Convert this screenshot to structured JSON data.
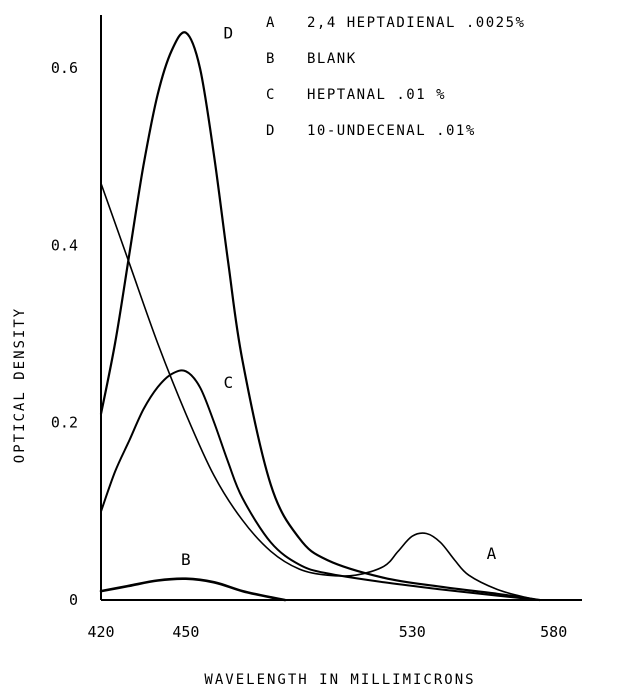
{
  "chart_data": {
    "type": "line",
    "xlabel": "WAVELENGTH IN MILLIMICRONS",
    "ylabel": "OPTICAL DENSITY",
    "xlim": [
      420,
      590
    ],
    "ylim": [
      0,
      0.66
    ],
    "x_ticks": [
      {
        "value": 420,
        "label": "420"
      },
      {
        "value": 450,
        "label": "450"
      },
      {
        "value": 530,
        "label": "530"
      },
      {
        "value": 580,
        "label": "580"
      }
    ],
    "y_ticks": [
      {
        "value": 0,
        "label": "0"
      },
      {
        "value": 0.2,
        "label": "0.2"
      },
      {
        "value": 0.4,
        "label": "0.4"
      },
      {
        "value": 0.6,
        "label": "0.6"
      }
    ],
    "grid": false,
    "legend_position": "top-right",
    "legend": [
      {
        "key": "A",
        "text": "2,4 HEPTADIENAL .0025%"
      },
      {
        "key": "B",
        "text": "BLANK"
      },
      {
        "key": "C",
        "text": "HEPTANAL .01 %"
      },
      {
        "key": "D",
        "text": "10-UNDECENAL .01%"
      }
    ],
    "series": [
      {
        "name": "A",
        "x": [
          420,
          430,
          440,
          450,
          460,
          470,
          480,
          490,
          500,
          510,
          520,
          525,
          530,
          535,
          540,
          545,
          550,
          560,
          570,
          575
        ],
        "y": [
          0.47,
          0.38,
          0.29,
          0.21,
          0.14,
          0.09,
          0.055,
          0.035,
          0.028,
          0.028,
          0.038,
          0.055,
          0.072,
          0.075,
          0.065,
          0.045,
          0.028,
          0.012,
          0.003,
          0.0
        ]
      },
      {
        "name": "B",
        "x": [
          420,
          430,
          440,
          450,
          460,
          470,
          480,
          485
        ],
        "y": [
          0.01,
          0.016,
          0.022,
          0.024,
          0.02,
          0.01,
          0.003,
          0.0
        ]
      },
      {
        "name": "C",
        "x": [
          420,
          425,
          430,
          435,
          440,
          445,
          450,
          455,
          460,
          465,
          470,
          480,
          490,
          500,
          520,
          540,
          560,
          575
        ],
        "y": [
          0.1,
          0.145,
          0.18,
          0.215,
          0.24,
          0.255,
          0.258,
          0.24,
          0.2,
          0.155,
          0.115,
          0.065,
          0.04,
          0.03,
          0.02,
          0.012,
          0.005,
          0.0
        ]
      },
      {
        "name": "D",
        "x": [
          420,
          425,
          430,
          435,
          440,
          445,
          450,
          455,
          460,
          465,
          470,
          480,
          490,
          500,
          520,
          540,
          560,
          575
        ],
        "y": [
          0.21,
          0.29,
          0.39,
          0.49,
          0.57,
          0.62,
          0.64,
          0.6,
          0.5,
          0.38,
          0.27,
          0.13,
          0.07,
          0.045,
          0.025,
          0.015,
          0.007,
          0.0
        ]
      }
    ],
    "curve_labels": [
      {
        "series": "D",
        "text": "D",
        "x": 465,
        "y": 0.64
      },
      {
        "series": "C",
        "text": "C",
        "x": 465,
        "y": 0.246
      },
      {
        "series": "A",
        "text": "A",
        "x": 558,
        "y": 0.053
      },
      {
        "series": "B",
        "text": "B",
        "x": 450,
        "y": 0.046
      }
    ]
  }
}
